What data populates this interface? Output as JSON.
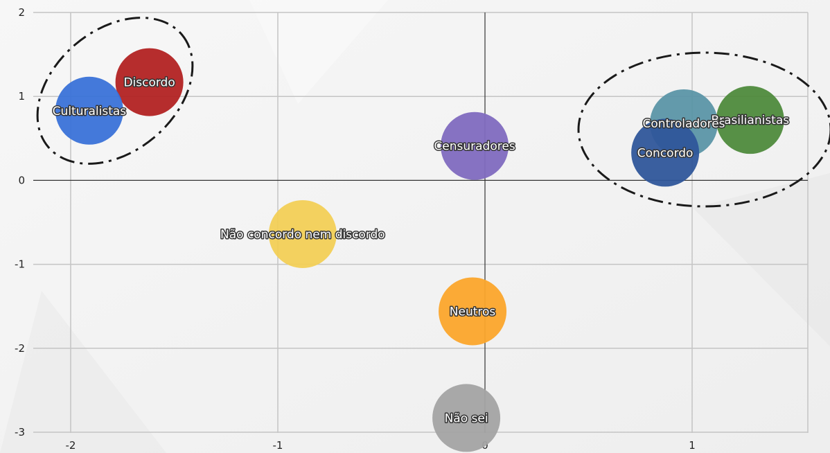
{
  "chart_data": {
    "type": "scatter",
    "title": "",
    "xlabel": "",
    "ylabel": "",
    "xlim": [
      -2.2,
      1.55
    ],
    "ylim": [
      -3,
      2
    ],
    "x_ticks": [
      -2,
      -1,
      0,
      1
    ],
    "y_ticks": [
      2,
      1,
      0,
      -1,
      -2,
      -3
    ],
    "x_tick_labels": [
      "-2",
      "-1",
      "0",
      "1"
    ],
    "y_tick_labels": [
      "2",
      "1",
      "0",
      "-1",
      "-2",
      "-3"
    ],
    "grid": true,
    "points": [
      {
        "label": "Discordo",
        "x": -1.62,
        "y": 1.17,
        "color": "#b22222"
      },
      {
        "label": "Culturalistas",
        "x": -1.91,
        "y": 0.83,
        "color": "#3a72d8"
      },
      {
        "label": "Censuradores",
        "x": -0.05,
        "y": 0.41,
        "color": "#7f6abf"
      },
      {
        "label": "Não concordo nem discordo",
        "x": -0.88,
        "y": -0.64,
        "color": "#f2cf56"
      },
      {
        "label": "Neutros",
        "x": -0.06,
        "y": -1.56,
        "color": "#fba52b"
      },
      {
        "label": "Não sei",
        "x": -0.09,
        "y": -2.83,
        "color": "#a3a3a3"
      },
      {
        "label": "Brasilianistas",
        "x": 1.28,
        "y": 0.72,
        "color": "#4e8a3c"
      },
      {
        "label": "Controladores",
        "x": 0.96,
        "y": 0.68,
        "color": "#5b95a6"
      },
      {
        "label": "Concordo",
        "x": 0.87,
        "y": 0.33,
        "color": "#2f569a"
      }
    ],
    "annotations": [
      {
        "type": "dash-dot ellipse",
        "encloses": [
          "Discordo",
          "Culturalistas"
        ]
      },
      {
        "type": "dash-dot ellipse",
        "encloses": [
          "Brasilianistas",
          "Controladores",
          "Concordo"
        ]
      }
    ]
  }
}
